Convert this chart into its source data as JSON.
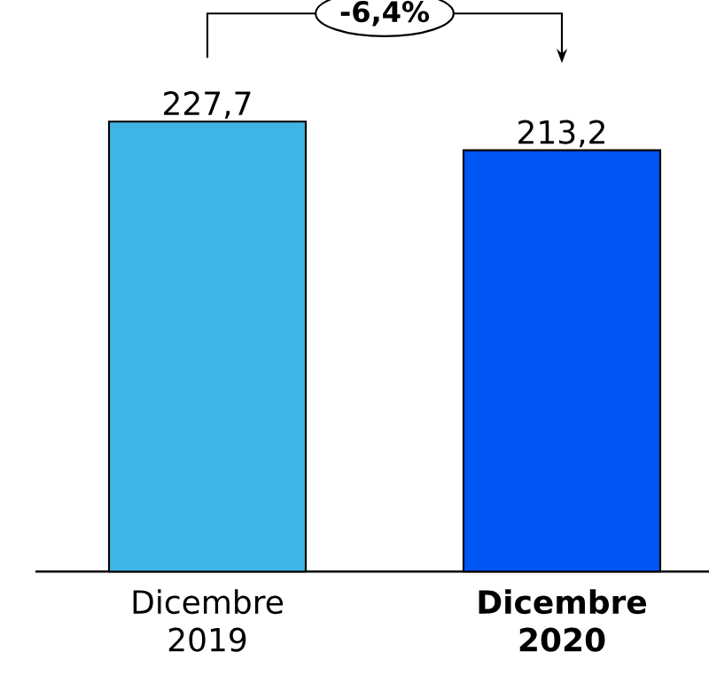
{
  "chart_data": {
    "type": "bar",
    "categories": [
      "Dicembre 2019",
      "**Dicembre 2020**"
    ],
    "values": [
      227.7,
      213.2
    ],
    "colors": [
      "#3fb5e5",
      "#0055f5"
    ],
    "value_labels": [
      "227,7",
      "213,2"
    ],
    "annotations": [
      "-6,4%"
    ]
  }
}
